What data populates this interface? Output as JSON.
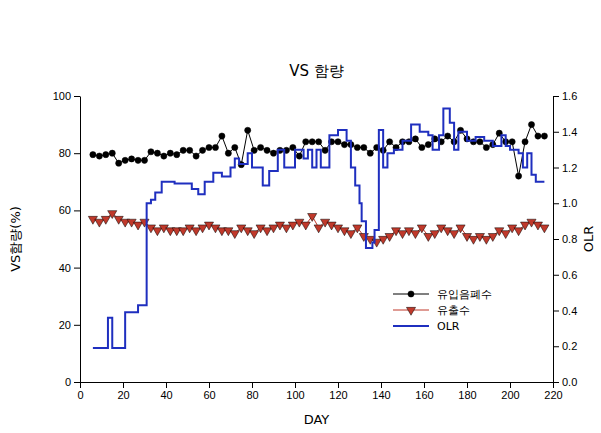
{
  "chart_data": {
    "type": "line",
    "title": "VS 함량",
    "x_label": "DAY",
    "y_label": "VS함량(%)",
    "y2_label": "OLR",
    "xlim": [
      0,
      220
    ],
    "xticks": [
      0,
      20,
      40,
      60,
      80,
      100,
      120,
      140,
      160,
      180,
      200,
      220
    ],
    "ylim": [
      0,
      100
    ],
    "yticks": [
      0,
      20,
      40,
      60,
      80,
      100
    ],
    "y2lim": [
      0,
      1.6
    ],
    "y2ticks": [
      {
        "value": 0,
        "label": "0.0"
      },
      {
        "value": 0.2,
        "label": "0.2"
      },
      {
        "value": 0.4,
        "label": "0.4"
      },
      {
        "value": 0.6,
        "label": "0.6"
      },
      {
        "value": 0.8,
        "label": "0.8"
      },
      {
        "value": 1.0,
        "label": "1.0"
      },
      {
        "value": 1.2,
        "label": "1.2"
      },
      {
        "value": 1.4,
        "label": "1.4"
      },
      {
        "value": 1.6,
        "label": "1.6"
      }
    ],
    "grid": false,
    "legend": "lower right",
    "series": [
      {
        "name": "유입음폐수",
        "color": "#000000",
        "type": "line",
        "marker": "circle",
        "line_style": "solid",
        "x": [
          6,
          9,
          12,
          15,
          18,
          21,
          24,
          27,
          30,
          33,
          36,
          39,
          42,
          45,
          48,
          51,
          54,
          57,
          60,
          63,
          66,
          69,
          72,
          75,
          78,
          81,
          84,
          87,
          90,
          93,
          96,
          99,
          102,
          105,
          108,
          111,
          114,
          117,
          120,
          123,
          126,
          129,
          132,
          135,
          138,
          141,
          144,
          147,
          150,
          153,
          156,
          159,
          162,
          165,
          168,
          171,
          174,
          177,
          180,
          183,
          186,
          189,
          192,
          195,
          198,
          201,
          204,
          207,
          210,
          213,
          216
        ],
        "values": [
          79.5,
          79,
          79.5,
          80,
          76.5,
          77.5,
          78,
          77.5,
          77.5,
          80.5,
          80,
          79,
          80,
          79.5,
          81,
          81,
          79,
          81,
          82,
          82,
          86,
          80,
          82,
          76,
          88,
          81,
          82,
          81,
          80,
          81,
          81,
          82,
          79,
          84,
          84,
          84,
          81,
          84,
          84,
          83,
          83,
          82,
          82,
          80,
          82,
          81,
          84,
          82,
          84,
          84,
          85,
          82,
          83,
          85,
          84,
          86,
          84,
          88,
          85,
          84,
          84,
          82,
          83,
          87,
          84,
          84,
          72,
          84,
          90,
          86,
          86
        ]
      },
      {
        "name": "유출수",
        "color": "#c0392b",
        "type": "line",
        "marker": "triangle-down",
        "line_style": "solid",
        "x": [
          6,
          9,
          12,
          15,
          18,
          21,
          24,
          27,
          30,
          33,
          36,
          39,
          42,
          45,
          48,
          51,
          54,
          57,
          60,
          63,
          66,
          69,
          72,
          75,
          78,
          81,
          84,
          87,
          90,
          93,
          96,
          99,
          102,
          105,
          108,
          111,
          114,
          117,
          120,
          123,
          126,
          129,
          132,
          135,
          138,
          141,
          144,
          147,
          150,
          153,
          156,
          159,
          162,
          165,
          168,
          171,
          174,
          177,
          180,
          183,
          186,
          189,
          192,
          195,
          198,
          201,
          204,
          207,
          210,
          213,
          216
        ],
        "values": [
          57,
          56,
          57,
          59,
          57,
          56,
          56,
          55,
          56,
          54,
          53,
          54,
          53,
          53,
          53,
          54,
          53,
          54,
          55,
          54,
          53,
          53,
          52,
          54,
          53,
          52,
          54,
          53,
          54,
          55,
          54,
          55,
          56,
          55,
          58,
          54,
          56,
          55,
          54,
          53,
          52,
          54,
          51,
          50,
          49,
          50,
          51,
          53,
          52,
          53,
          52,
          54,
          51,
          52,
          54,
          53,
          52,
          54,
          51,
          50,
          51,
          50,
          51,
          53,
          52,
          54,
          53,
          55,
          56,
          55,
          54
        ]
      },
      {
        "name": "OLR",
        "color": "#1f2fbf",
        "type": "step",
        "marker": "none",
        "line_style": "solid",
        "axis": "y2",
        "x": [
          6,
          13,
          15,
          21,
          27,
          31,
          33,
          35,
          38,
          44,
          52,
          55,
          58,
          62,
          66,
          70,
          72,
          74,
          78,
          80,
          85,
          88,
          92,
          95,
          100,
          104,
          106,
          108,
          110,
          112,
          116,
          120,
          124,
          126,
          128,
          130,
          131,
          133,
          136,
          137,
          139,
          141,
          143,
          146,
          150,
          154,
          158,
          162,
          164,
          167,
          169,
          172,
          174,
          176,
          180,
          184,
          188,
          192,
          196,
          198,
          200,
          204,
          206,
          208,
          210,
          212,
          216
        ],
        "values": [
          0.19,
          0.36,
          0.19,
          0.39,
          0.43,
          1.0,
          1.02,
          1.06,
          1.12,
          1.11,
          1.08,
          1.05,
          1.12,
          1.17,
          1.15,
          1.2,
          1.25,
          1.22,
          1.28,
          1.2,
          1.1,
          1.18,
          1.3,
          1.2,
          1.3,
          1.25,
          1.3,
          1.2,
          1.3,
          1.2,
          1.38,
          1.41,
          1.35,
          1.2,
          1.1,
          1.0,
          0.9,
          0.75,
          0.78,
          0.85,
          1.41,
          1.2,
          1.28,
          1.3,
          1.35,
          1.44,
          1.4,
          1.38,
          1.3,
          1.38,
          1.53,
          1.45,
          1.3,
          1.4,
          1.35,
          1.37,
          1.35,
          1.32,
          1.38,
          1.32,
          1.3,
          1.28,
          1.2,
          1.28,
          1.16,
          1.12,
          1.12
        ]
      }
    ]
  }
}
